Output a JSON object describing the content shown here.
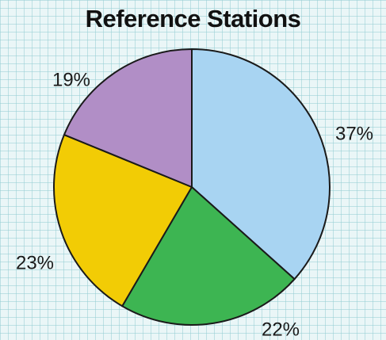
{
  "chart_data": {
    "type": "pie",
    "title": "Reference Stations",
    "slices": [
      {
        "label": "37%",
        "value": 37,
        "color": "#a8d4f2"
      },
      {
        "label": "22%",
        "value": 22,
        "color": "#3db552"
      },
      {
        "label": "23%",
        "value": 23,
        "color": "#f2cc05"
      },
      {
        "label": "19%",
        "value": 19,
        "color": "#b18ec6"
      }
    ],
    "start": "12 o'clock",
    "direction": "clockwise",
    "legend": "none"
  }
}
